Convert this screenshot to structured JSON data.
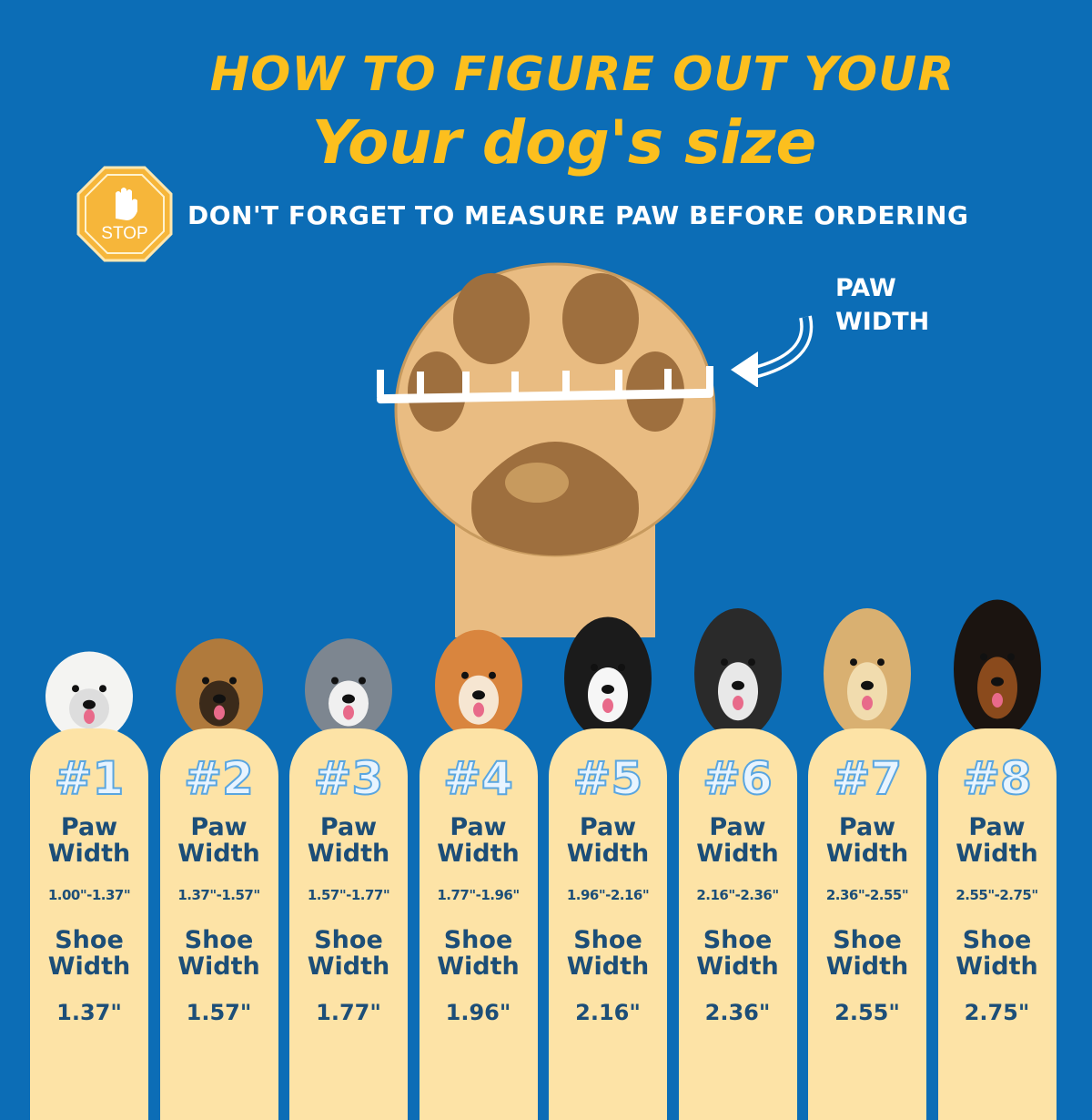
{
  "header": {
    "title_line1": "HOW TO FIGURE OUT YOUR",
    "title_line2": "Your dog's size",
    "reminder": "DON'T FORGET TO MEASURE PAW BEFORE ORDERING",
    "stop_sign_text": "STOP"
  },
  "diagram": {
    "paw_width_label_line1": "PAW",
    "paw_width_label_line2": "WIDTH"
  },
  "colors": {
    "background": "#0c6db6",
    "title": "#fcbf1e",
    "card": "#fde3a6",
    "card_text": "#1c4e78"
  },
  "sizes": [
    {
      "number": "#1",
      "paw_label_1": "Paw",
      "paw_label_2": "Width",
      "paw_range": "1.00\"-1.37\"",
      "shoe_label_1": "Shoe",
      "shoe_label_2": "Width",
      "shoe_width": "1.37\""
    },
    {
      "number": "#2",
      "paw_label_1": "Paw",
      "paw_label_2": "Width",
      "paw_range": "1.37\"-1.57\"",
      "shoe_label_1": "Shoe",
      "shoe_label_2": "Width",
      "shoe_width": "1.57\""
    },
    {
      "number": "#3",
      "paw_label_1": "Paw",
      "paw_label_2": "Width",
      "paw_range": "1.57\"-1.77\"",
      "shoe_label_1": "Shoe",
      "shoe_label_2": "Width",
      "shoe_width": "1.77\""
    },
    {
      "number": "#4",
      "paw_label_1": "Paw",
      "paw_label_2": "Width",
      "paw_range": "1.77\"-1.96\"",
      "shoe_label_1": "Shoe",
      "shoe_label_2": "Width",
      "shoe_width": "1.96\""
    },
    {
      "number": "#5",
      "paw_label_1": "Paw",
      "paw_label_2": "Width",
      "paw_range": "1.96\"-2.16\"",
      "shoe_label_1": "Shoe",
      "shoe_label_2": "Width",
      "shoe_width": "2.16\""
    },
    {
      "number": "#6",
      "paw_label_1": "Paw",
      "paw_label_2": "Width",
      "paw_range": "2.16\"-2.36\"",
      "shoe_label_1": "Shoe",
      "shoe_label_2": "Width",
      "shoe_width": "2.36\""
    },
    {
      "number": "#7",
      "paw_label_1": "Paw",
      "paw_label_2": "Width",
      "paw_range": "2.36\"-2.55\"",
      "shoe_label_1": "Shoe",
      "shoe_label_2": "Width",
      "shoe_width": "2.55\""
    },
    {
      "number": "#8",
      "paw_label_1": "Paw",
      "paw_label_2": "Width",
      "paw_range": "2.55\"-2.75\"",
      "shoe_label_1": "Shoe",
      "shoe_label_2": "Width",
      "shoe_width": "2.75\""
    }
  ]
}
